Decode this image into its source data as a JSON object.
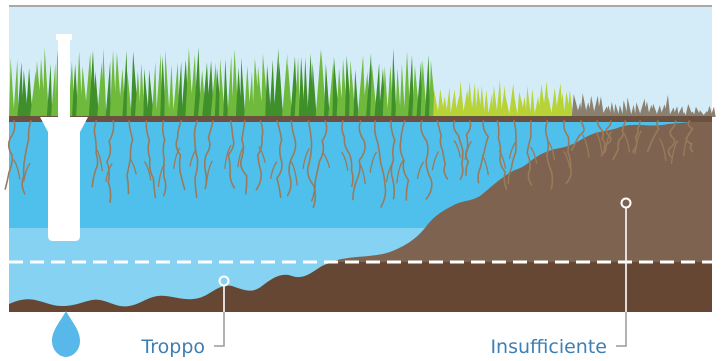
{
  "labels": {
    "too_much": "Troppo",
    "insufficient": "Insufficiente"
  },
  "colors": {
    "sky": "#d3ecf8",
    "frame_top": "#a9a9a9",
    "grass_green": "#6fba3c",
    "grass_dark": "#3f8f2a",
    "grass_yellow": "#b8d335",
    "grass_brown": "#8b8070",
    "topsoil": "#6b5240",
    "water_root_zone": "#4fc0ec",
    "water_deep": "#86d2f3",
    "soil_dry": "#7e6450",
    "soil_deep": "#664734",
    "root": "#9b7a5c",
    "dashed_line": "#ffffff",
    "sprinkler": "#ffffff",
    "drop": "#59b8ea",
    "label_text": "#3d7fb3",
    "leader_line": "#9a9a9a"
  },
  "icons": {
    "sprinkler": "sprinkler-icon",
    "water_drop": "water-drop-icon"
  }
}
